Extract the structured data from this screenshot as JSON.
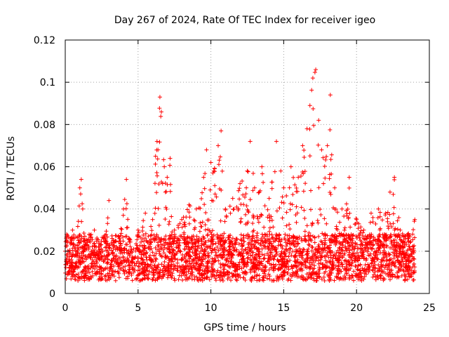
{
  "chart_data": {
    "type": "scatter",
    "title": "Day 267 of 2024, Rate Of TEC Index for receiver igeo",
    "xlabel": "GPS time / hours",
    "ylabel": "ROTI / TECUs",
    "xlim": [
      0,
      25
    ],
    "ylim": [
      0,
      0.12
    ],
    "xticks": [
      "0",
      "5",
      "10",
      "15",
      "20",
      "25"
    ],
    "yticks": [
      "0",
      "0.02",
      "0.04",
      "0.06",
      "0.08",
      "0.1",
      "0.12"
    ],
    "grid": true,
    "marker": "+",
    "color": "#ff0000",
    "series": [
      {
        "name": "ROTI",
        "note": "dense scatter; values below are representative samples (hours, TECU/min)",
        "points": [
          [
            0.0,
            0.02
          ],
          [
            0.1,
            0.028
          ],
          [
            0.3,
            0.012
          ],
          [
            0.5,
            0.03
          ],
          [
            0.7,
            0.018
          ],
          [
            1.0,
            0.05
          ],
          [
            1.1,
            0.054
          ],
          [
            1.2,
            0.04
          ],
          [
            1.5,
            0.025
          ],
          [
            2.0,
            0.03
          ],
          [
            2.5,
            0.02
          ],
          [
            3.0,
            0.044
          ],
          [
            3.5,
            0.018
          ],
          [
            4.0,
            0.04
          ],
          [
            4.2,
            0.054
          ],
          [
            4.5,
            0.02
          ],
          [
            5.0,
            0.03
          ],
          [
            5.5,
            0.038
          ],
          [
            6.0,
            0.035
          ],
          [
            6.2,
            0.065
          ],
          [
            6.3,
            0.072
          ],
          [
            6.5,
            0.093
          ],
          [
            6.6,
            0.086
          ],
          [
            6.8,
            0.06
          ],
          [
            7.0,
            0.055
          ],
          [
            7.2,
            0.064
          ],
          [
            7.5,
            0.03
          ],
          [
            8.0,
            0.035
          ],
          [
            8.5,
            0.042
          ],
          [
            9.0,
            0.04
          ],
          [
            9.5,
            0.055
          ],
          [
            9.7,
            0.068
          ],
          [
            10.0,
            0.062
          ],
          [
            10.2,
            0.058
          ],
          [
            10.5,
            0.07
          ],
          [
            10.7,
            0.077
          ],
          [
            11.0,
            0.04
          ],
          [
            11.5,
            0.045
          ],
          [
            12.0,
            0.052
          ],
          [
            12.5,
            0.058
          ],
          [
            12.7,
            0.072
          ],
          [
            13.0,
            0.05
          ],
          [
            13.5,
            0.06
          ],
          [
            14.0,
            0.045
          ],
          [
            14.5,
            0.072
          ],
          [
            14.8,
            0.058
          ],
          [
            15.0,
            0.05
          ],
          [
            15.5,
            0.06
          ],
          [
            16.0,
            0.055
          ],
          [
            16.3,
            0.07
          ],
          [
            16.6,
            0.078
          ],
          [
            16.8,
            0.089
          ],
          [
            17.0,
            0.102
          ],
          [
            17.2,
            0.106
          ],
          [
            17.4,
            0.082
          ],
          [
            17.6,
            0.068
          ],
          [
            18.0,
            0.07
          ],
          [
            18.2,
            0.094
          ],
          [
            18.5,
            0.05
          ],
          [
            19.0,
            0.04
          ],
          [
            19.5,
            0.055
          ],
          [
            20.0,
            0.035
          ],
          [
            20.5,
            0.03
          ],
          [
            21.0,
            0.038
          ],
          [
            21.5,
            0.04
          ],
          [
            22.0,
            0.038
          ],
          [
            22.3,
            0.048
          ],
          [
            22.6,
            0.055
          ],
          [
            23.0,
            0.03
          ],
          [
            23.5,
            0.028
          ],
          [
            24.0,
            0.035
          ]
        ]
      }
    ]
  }
}
